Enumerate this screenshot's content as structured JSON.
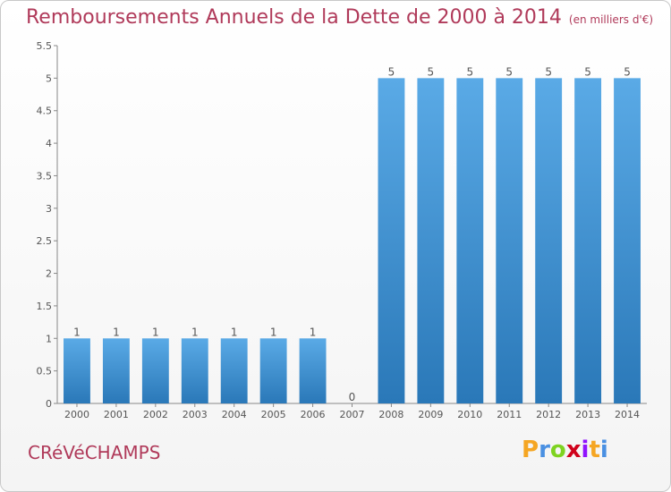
{
  "title": "Remboursements Annuels de la Dette de 2000 à 2014",
  "subtitle": "(en milliers d'€)",
  "city": "CRéVéCHAMPS",
  "logo": {
    "letters": [
      "P",
      "r",
      "o",
      "x",
      "i",
      "t",
      "i"
    ],
    "colors": [
      "#f5a623",
      "#4a90e2",
      "#7ed321",
      "#d0021b",
      "#9013fe",
      "#f5a623",
      "#4a90e2"
    ]
  },
  "colors": {
    "title": "#b03a5a",
    "bar_top": "#5aaae6",
    "bar_bottom": "#2a78b8"
  },
  "chart_data": {
    "type": "bar",
    "categories": [
      "2000",
      "2001",
      "2002",
      "2003",
      "2004",
      "2005",
      "2006",
      "2007",
      "2008",
      "2009",
      "2010",
      "2011",
      "2012",
      "2013",
      "2014"
    ],
    "values": [
      1,
      1,
      1,
      1,
      1,
      1,
      1,
      0,
      5,
      5,
      5,
      5,
      5,
      5,
      5
    ],
    "value_labels": [
      "1",
      "1",
      "1",
      "1",
      "1",
      "1",
      "1",
      "0",
      "5",
      "5",
      "5",
      "5",
      "5",
      "5",
      "5"
    ],
    "yticks": [
      "0",
      "0.5",
      "1",
      "1.5",
      "2",
      "2.5",
      "3",
      "3.5",
      "4",
      "4.5",
      "5",
      "5.5"
    ],
    "ylim": [
      0,
      5.5
    ],
    "grid": false
  }
}
